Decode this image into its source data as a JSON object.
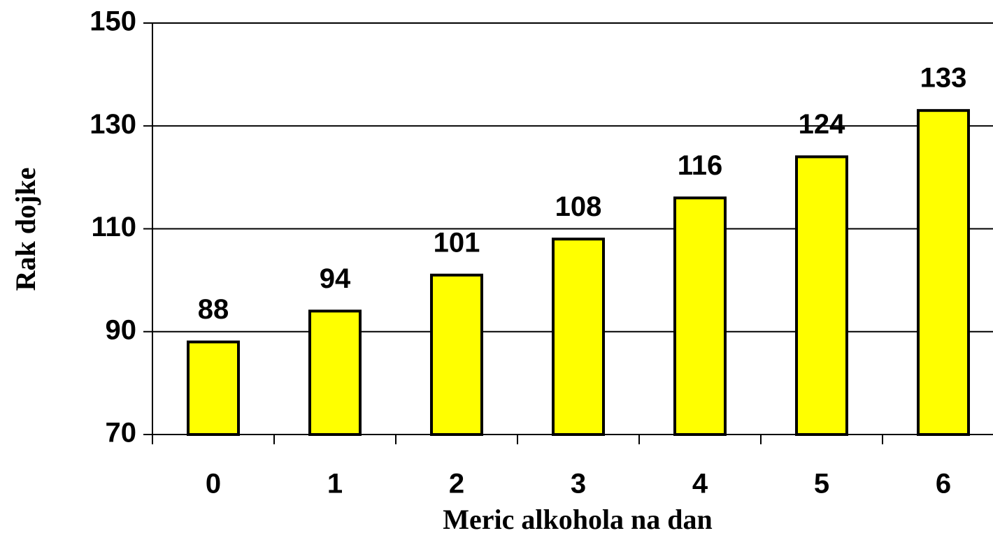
{
  "chart_data": {
    "type": "bar",
    "x_label": "Meric alkohola na dan",
    "y_label": "Rak dojke",
    "categories": [
      "0",
      "1",
      "2",
      "3",
      "4",
      "5",
      "6"
    ],
    "values": [
      88,
      94,
      101,
      108,
      116,
      124,
      133
    ],
    "color": "#ffff00",
    "ylim": [
      70,
      150
    ],
    "yticks": [
      70,
      90,
      110,
      130,
      150
    ],
    "grid": true
  }
}
